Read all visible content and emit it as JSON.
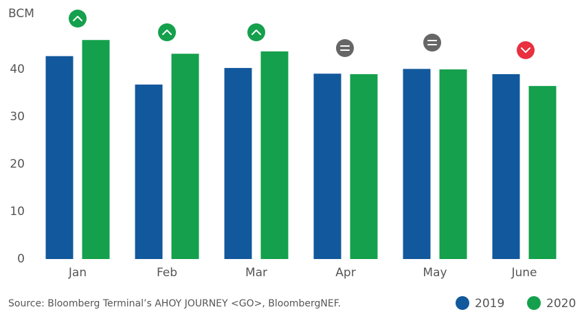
{
  "chart_data": {
    "type": "bar",
    "y_label": "BCM",
    "categories": [
      "Jan",
      "Feb",
      "Mar",
      "Apr",
      "May",
      "June"
    ],
    "series": [
      {
        "name": "2019",
        "color": "#12589c",
        "values": [
          42.8,
          36.8,
          40.3,
          39.1,
          40.1,
          39.0
        ]
      },
      {
        "name": "2020",
        "color": "#14a04c",
        "values": [
          46.2,
          43.3,
          43.8,
          39.0,
          40.0,
          36.5
        ]
      }
    ],
    "ylim": [
      0,
      50
    ],
    "yticks": [
      0,
      10,
      20,
      30,
      40
    ],
    "grid": false,
    "source": "Source: Bloomberg Terminal’s AHOY JOURNEY <GO>, BloombergNEF.",
    "legend": "bottom-right"
  }
}
